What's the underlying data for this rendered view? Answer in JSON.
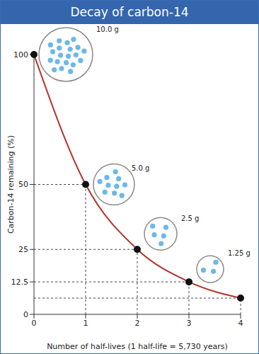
{
  "chart_data": {
    "type": "line",
    "title": "Decay of carbon-14",
    "x_label": "Number of half-lives (1 half-life = 5,730 years)",
    "y_label": "Carbon-14 remaining (%)",
    "x": [
      0,
      1,
      2,
      3,
      4
    ],
    "values": [
      100,
      50,
      25,
      12.5,
      6.25
    ],
    "color": "#b5332a",
    "marker": "circle",
    "xlim": [
      0,
      4
    ],
    "ylim": [
      0,
      100
    ],
    "xticks": [
      0,
      1,
      2,
      3,
      4
    ],
    "yticks": [
      0,
      12.5,
      25,
      50,
      100
    ],
    "grid": false,
    "annotations": [
      "10.0 g",
      "5.0 g",
      "2.5 g",
      "1.25 g"
    ]
  }
}
